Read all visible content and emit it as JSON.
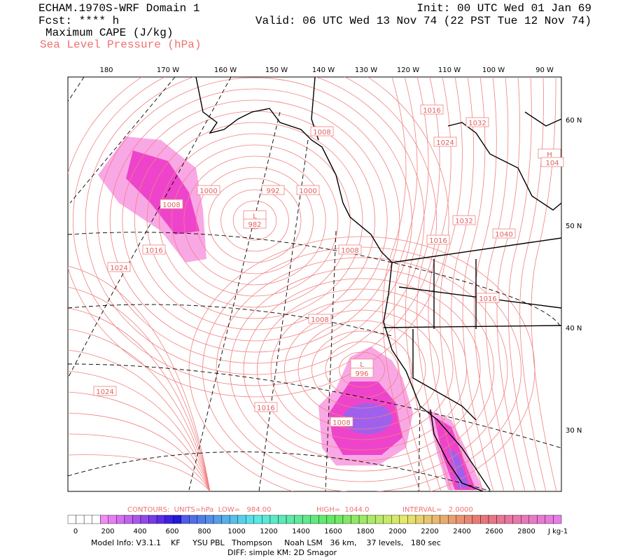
{
  "header": {
    "title": "ECHAM.1970S-WRF Domain 1",
    "forecast": "Fcst: **** h",
    "field": "Maximum CAPE (J/kg)",
    "contour_field": "Sea Level Pressure (hPa)",
    "init": "Init: 00 UTC Wed 01 Jan 69",
    "valid": "Valid: 06 UTC Wed 13 Nov 74 (22 PST Tue 12 Nov 74)"
  },
  "map": {
    "lon_labels": [
      "180",
      "170 W",
      "160 W",
      "150 W",
      "140 W",
      "130 W",
      "120 W",
      "110 W",
      "100 W",
      "90 W"
    ],
    "lat_labels": [
      "60 N",
      "50 N",
      "40 N",
      "30 N"
    ],
    "contour_labels": [
      "1016",
      "1032",
      "1024",
      "1008",
      "1000",
      "992",
      "1000",
      "1008",
      "L",
      "982",
      "1032",
      "1040",
      "1016",
      "1008",
      "1016",
      "1024",
      "1016",
      "1008",
      "L",
      "996",
      "1024",
      "1016",
      "1008",
      "H",
      "104"
    ]
  },
  "footer": {
    "contours": "CONTOURS:  UNITS=hPa  LOW=   984.00",
    "high": "HIGH=  1044.0",
    "interval": "INTERVAL=   2.0000",
    "colorbar_labels": [
      "0",
      "200",
      "400",
      "600",
      "800",
      "1000",
      "1200",
      "1400",
      "1600",
      "1800",
      "2000",
      "2200",
      "2400",
      "2600",
      "2800"
    ],
    "colorbar_unit": "J kg-1",
    "model_info": "Model Info: V3.1.1    KF     YSU PBL   Thompson     Noah LSM   36 km,    37 levels,   180 sec",
    "diff": "DIFF: simple KM: 2D Smagor"
  }
}
